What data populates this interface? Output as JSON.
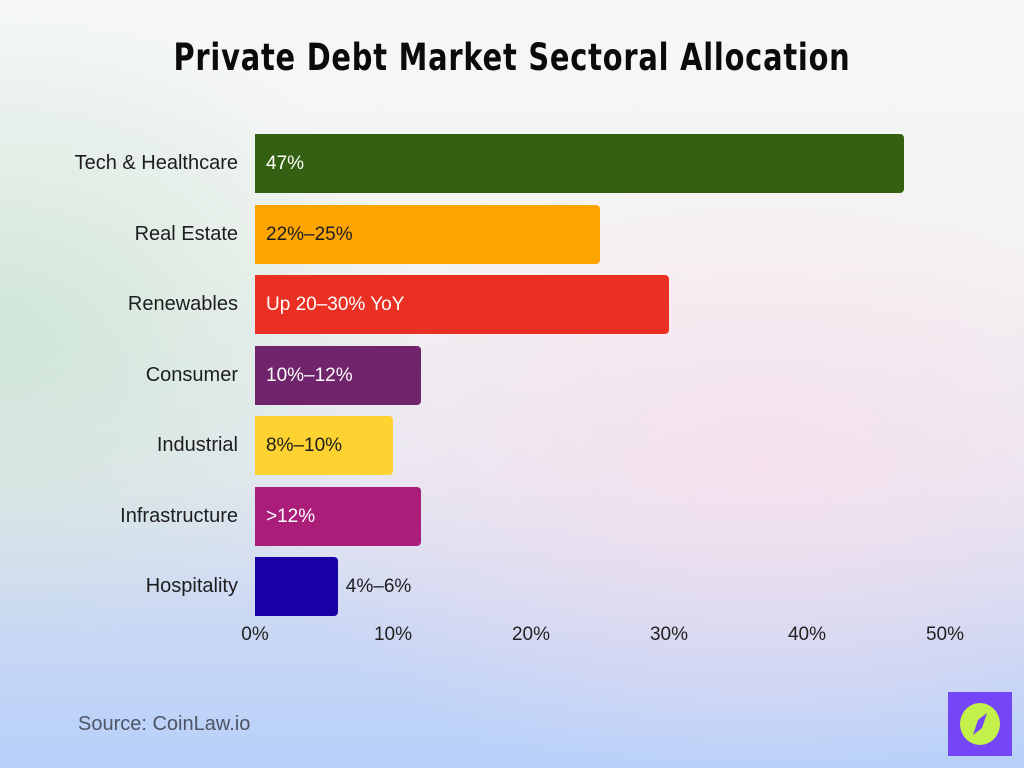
{
  "title": "Private Debt Market Sectoral Allocation",
  "source": "Source: CoinLaw.io",
  "logo": {
    "icon": "compass-logo-icon",
    "bg_color": "#7546f5",
    "fg_color": "#c3f04a"
  },
  "rows": [
    {
      "label": "Tech & Healthcare",
      "value_label": "47%",
      "value": 47,
      "color": "#336111",
      "text_color": "#ffffff",
      "label_inside": true
    },
    {
      "label": "Real Estate",
      "value_label": "22%–25%",
      "value": 25,
      "color": "#fca400",
      "text_color": "#1d1d1f",
      "label_inside": true
    },
    {
      "label": "Renewables",
      "value_label": "Up 20–30% YoY",
      "value": 30,
      "color": "#e93023",
      "text_color": "#ffffff",
      "label_inside": true
    },
    {
      "label": "Consumer",
      "value_label": "10%–12%",
      "value": 12,
      "color": "#6f246b",
      "text_color": "#ffffff",
      "label_inside": true
    },
    {
      "label": "Industrial",
      "value_label": "8%–10%",
      "value": 10,
      "color": "#fed231",
      "text_color": "#1d1d1f",
      "label_inside": true
    },
    {
      "label": "Infrastructure",
      "value_label": ">12%",
      "value": 12,
      "color": "#aa1e7a",
      "text_color": "#ffffff",
      "label_inside": true
    },
    {
      "label": "Hospitality",
      "value_label": "4%–6%",
      "value": 6,
      "color": "#1900a6",
      "text_color": "#1d1d1f",
      "label_inside": false
    }
  ],
  "axis": {
    "ticks": [
      "0%",
      "10%",
      "20%",
      "30%",
      "40%",
      "50%"
    ]
  },
  "chart_data": {
    "type": "bar",
    "orientation": "horizontal",
    "title": "Private Debt Market Sectoral Allocation",
    "categories": [
      "Tech & Healthcare",
      "Real Estate",
      "Renewables",
      "Consumer",
      "Industrial",
      "Infrastructure",
      "Hospitality"
    ],
    "values": [
      47,
      25,
      30,
      12,
      10,
      12,
      6
    ],
    "data_labels": [
      "47%",
      "22%–25%",
      "Up 20–30% YoY",
      "10%–12%",
      "8%–10%",
      ">12%",
      "4%–6%"
    ],
    "colors": [
      "#336111",
      "#fca400",
      "#e93023",
      "#6f246b",
      "#fed231",
      "#aa1e7a",
      "#1900a6"
    ],
    "xlabel": "",
    "ylabel": "",
    "xlim": [
      0,
      50
    ],
    "xticks": [
      "0%",
      "10%",
      "20%",
      "30%",
      "40%",
      "50%"
    ],
    "grid": false,
    "legend": null,
    "annotations": [
      "Source: CoinLaw.io"
    ]
  }
}
